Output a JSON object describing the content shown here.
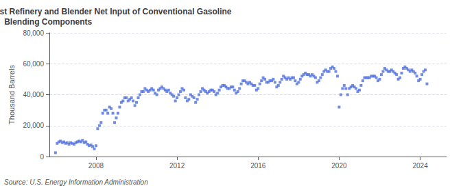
{
  "chart_data": {
    "type": "scatter",
    "title": "Monthly Refining District East Coast Refinery and Blender Net Input of Conventional Gasoline\nBlending Components",
    "ylabel": "Thousand Barrels",
    "source": "Source: U.S. Energy Information Administration",
    "marker": "square",
    "grid": true,
    "xlim": [
      2005.7,
      2025.3
    ],
    "xticks": [
      2008,
      2012,
      2016,
      2020,
      2024
    ],
    "ylim": [
      0,
      80000
    ],
    "yticks": [
      0,
      {
        "value": 20000,
        "label": "20,000"
      },
      {
        "value": 40000,
        "label": "40,000"
      },
      {
        "value": 60000,
        "label": "60,000"
      },
      {
        "value": 80000,
        "label": "80,000"
      }
    ],
    "x": [
      2006.0,
      2006.083,
      2006.167,
      2006.25,
      2006.333,
      2006.417,
      2006.5,
      2006.583,
      2006.667,
      2006.75,
      2006.833,
      2006.917,
      2007.0,
      2007.083,
      2007.167,
      2007.25,
      2007.333,
      2007.417,
      2007.5,
      2007.583,
      2007.667,
      2007.75,
      2007.833,
      2007.917,
      2008.0,
      2008.083,
      2008.167,
      2008.25,
      2008.333,
      2008.417,
      2008.5,
      2008.583,
      2008.667,
      2008.75,
      2008.833,
      2008.917,
      2009.0,
      2009.083,
      2009.167,
      2009.25,
      2009.333,
      2009.417,
      2009.5,
      2009.583,
      2009.667,
      2009.75,
      2009.833,
      2009.917,
      2010.0,
      2010.083,
      2010.167,
      2010.25,
      2010.333,
      2010.417,
      2010.5,
      2010.583,
      2010.667,
      2010.75,
      2010.833,
      2010.917,
      2011.0,
      2011.083,
      2011.167,
      2011.25,
      2011.333,
      2011.417,
      2011.5,
      2011.583,
      2011.667,
      2011.75,
      2011.833,
      2011.917,
      2012.0,
      2012.083,
      2012.167,
      2012.25,
      2012.333,
      2012.417,
      2012.5,
      2012.583,
      2012.667,
      2012.75,
      2012.833,
      2012.917,
      2013.0,
      2013.083,
      2013.167,
      2013.25,
      2013.333,
      2013.417,
      2013.5,
      2013.583,
      2013.667,
      2013.75,
      2013.833,
      2013.917,
      2014.0,
      2014.083,
      2014.167,
      2014.25,
      2014.333,
      2014.417,
      2014.5,
      2014.583,
      2014.667,
      2014.75,
      2014.833,
      2014.917,
      2015.0,
      2015.083,
      2015.167,
      2015.25,
      2015.333,
      2015.417,
      2015.5,
      2015.583,
      2015.667,
      2015.75,
      2015.833,
      2015.917,
      2016.0,
      2016.083,
      2016.167,
      2016.25,
      2016.333,
      2016.417,
      2016.5,
      2016.583,
      2016.667,
      2016.75,
      2016.833,
      2016.917,
      2017.0,
      2017.083,
      2017.167,
      2017.25,
      2017.333,
      2017.417,
      2017.5,
      2017.583,
      2017.667,
      2017.75,
      2017.833,
      2017.917,
      2018.0,
      2018.083,
      2018.167,
      2018.25,
      2018.333,
      2018.417,
      2018.5,
      2018.583,
      2018.667,
      2018.75,
      2018.833,
      2018.917,
      2019.0,
      2019.083,
      2019.167,
      2019.25,
      2019.333,
      2019.417,
      2019.5,
      2019.583,
      2019.667,
      2019.75,
      2019.833,
      2019.917,
      2020.0,
      2020.083,
      2020.167,
      2020.25,
      2020.333,
      2020.417,
      2020.5,
      2020.583,
      2020.667,
      2020.75,
      2020.833,
      2020.917,
      2021.0,
      2021.083,
      2021.167,
      2021.25,
      2021.333,
      2021.417,
      2021.5,
      2021.583,
      2021.667,
      2021.75,
      2021.833,
      2021.917,
      2022.0,
      2022.083,
      2022.167,
      2022.25,
      2022.333,
      2022.417,
      2022.5,
      2022.583,
      2022.667,
      2022.75,
      2022.833,
      2022.917,
      2023.0,
      2023.083,
      2023.167,
      2023.25,
      2023.333,
      2023.417,
      2023.5,
      2023.583,
      2023.667,
      2023.75,
      2023.833,
      2023.917,
      2024.0,
      2024.083,
      2024.167,
      2024.25,
      2024.333
    ],
    "values": [
      2500,
      8500,
      9500,
      10000,
      9000,
      9500,
      8500,
      9000,
      8000,
      9000,
      8500,
      8000,
      9000,
      9500,
      10000,
      9500,
      10500,
      9000,
      9500,
      8000,
      7000,
      7500,
      6500,
      5000,
      7000,
      18000,
      20000,
      22000,
      28000,
      30000,
      30000,
      28000,
      32000,
      31000,
      28000,
      22000,
      25000,
      28000,
      32000,
      35000,
      36000,
      38000,
      38000,
      36000,
      37000,
      38000,
      36000,
      33000,
      35000,
      38000,
      40000,
      42000,
      42000,
      44000,
      43000,
      42000,
      43000,
      44000,
      43000,
      41000,
      40000,
      43000,
      44000,
      45000,
      44000,
      43000,
      42000,
      43000,
      41000,
      40000,
      39000,
      36000,
      38000,
      40000,
      42000,
      44000,
      43000,
      38000,
      36000,
      37000,
      40000,
      39000,
      38000,
      35000,
      37000,
      40000,
      42000,
      44000,
      43000,
      42000,
      41000,
      42000,
      43000,
      43000,
      42000,
      40000,
      41000,
      43000,
      45000,
      46000,
      46000,
      45000,
      44000,
      44000,
      45000,
      45000,
      43000,
      41000,
      42000,
      44000,
      47000,
      49000,
      49000,
      48000,
      47000,
      48000,
      47000,
      46000,
      46000,
      43000,
      44000,
      47000,
      49000,
      51000,
      50000,
      48000,
      48000,
      49000,
      49000,
      50000,
      48000,
      45000,
      46000,
      48000,
      50000,
      52000,
      51000,
      50000,
      51000,
      50000,
      51000,
      51000,
      49000,
      47000,
      48000,
      50000,
      52000,
      53000,
      54000,
      53000,
      53000,
      52000,
      53000,
      52000,
      51000,
      48000,
      49000,
      51000,
      53000,
      55000,
      56000,
      55000,
      55000,
      57000,
      58000,
      57000,
      55000,
      52000,
      32000,
      40000,
      44000,
      46000,
      44000,
      40000,
      44000,
      45000,
      46000,
      45000,
      44000,
      42000,
      43000,
      46000,
      49000,
      51000,
      51000,
      51000,
      51000,
      52000,
      52000,
      52000,
      51000,
      49000,
      50000,
      53000,
      55000,
      57000,
      56000,
      55000,
      55000,
      56000,
      55000,
      54000,
      53000,
      50000,
      51000,
      54000,
      57000,
      58000,
      57000,
      56000,
      55000,
      56000,
      55000,
      54000,
      52000,
      49000,
      50000,
      53000,
      55000,
      56000,
      47000
    ]
  }
}
